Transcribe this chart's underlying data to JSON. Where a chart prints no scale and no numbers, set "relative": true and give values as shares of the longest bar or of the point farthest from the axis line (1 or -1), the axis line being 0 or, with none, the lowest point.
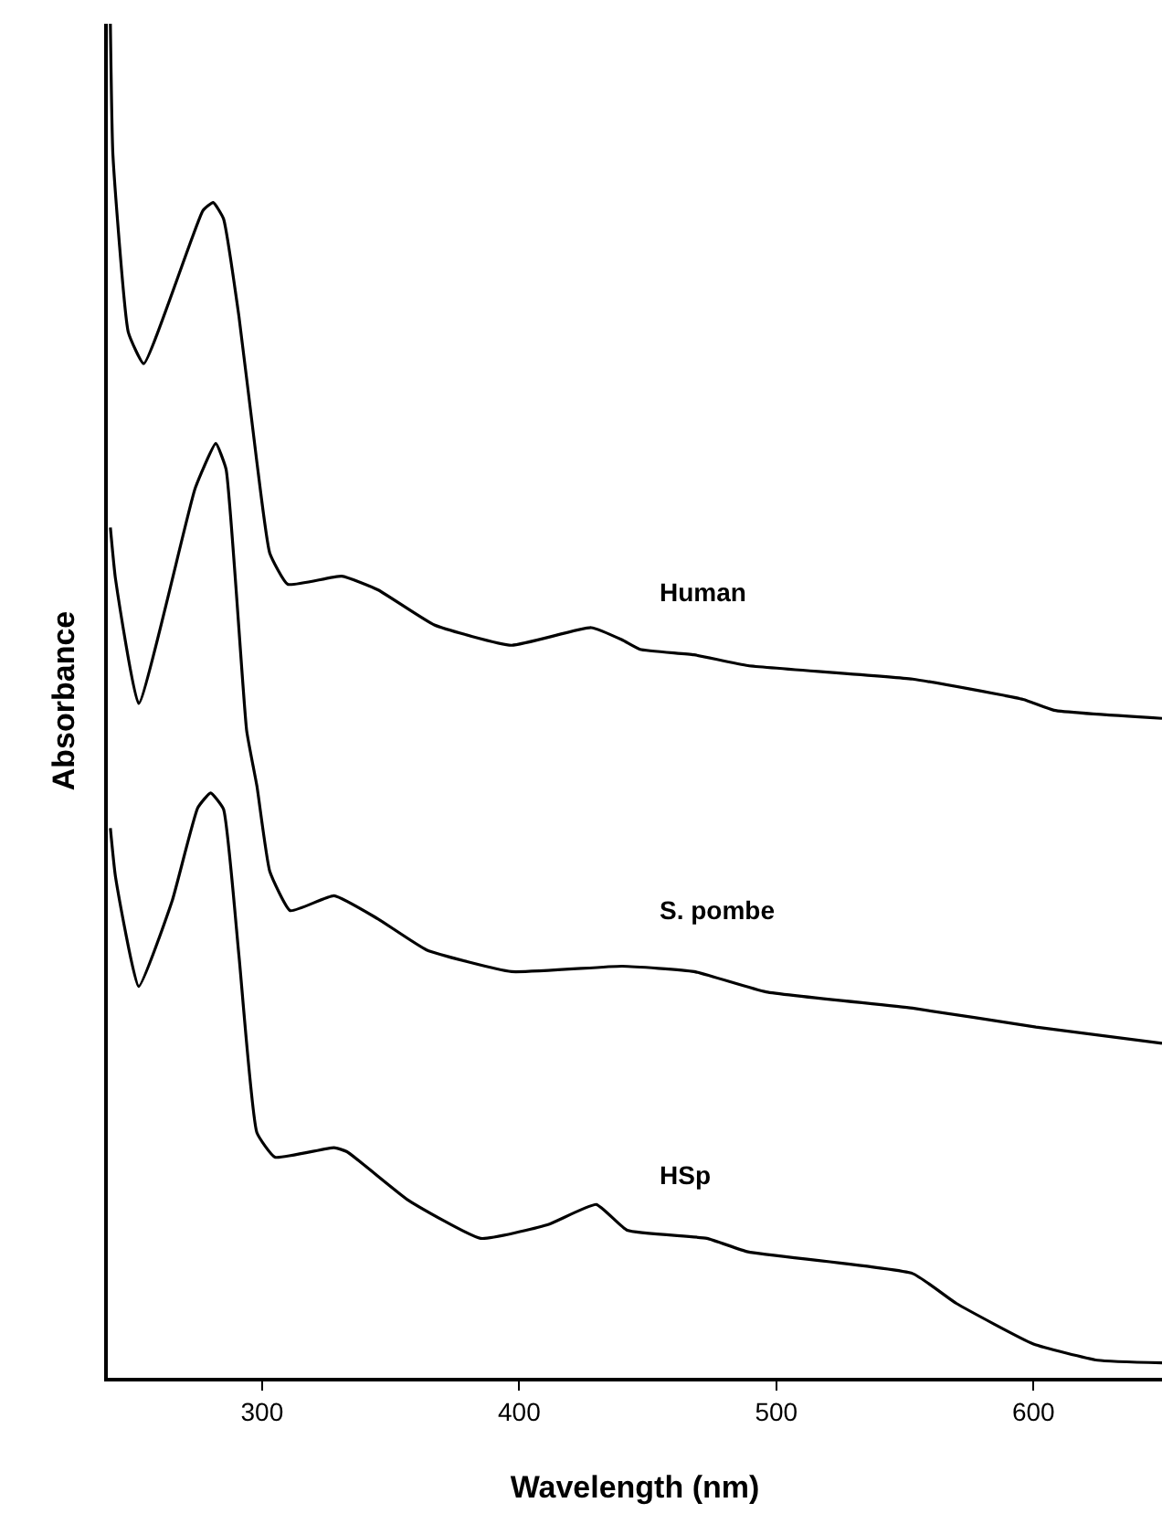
{
  "chart_data": {
    "type": "line",
    "xlabel": "Wavelength (nm)",
    "ylabel": "Absorbance",
    "relative": true,
    "xlim": [
      240,
      650
    ],
    "xticks": [
      300,
      400,
      500,
      600
    ],
    "legend": false,
    "marker": "none",
    "line_style": "solid",
    "series": [
      {
        "name": "Human",
        "color": "#000000",
        "x": [
          241,
          242,
          248,
          254,
          277,
          281,
          285,
          291,
          298,
          303,
          310,
          331,
          345,
          367,
          397,
          428,
          440,
          447,
          468,
          489,
          553,
          596,
          608,
          650
        ],
        "values": [
          1.0,
          0.903,
          0.772,
          0.749,
          0.862,
          0.868,
          0.856,
          0.784,
          0.676,
          0.609,
          0.586,
          0.592,
          0.582,
          0.556,
          0.541,
          0.554,
          0.545,
          0.538,
          0.534,
          0.526,
          0.516,
          0.501,
          0.493,
          0.487
        ]
      },
      {
        "name": "S. pombe",
        "color": "#000000",
        "x": [
          241,
          243,
          252,
          274,
          282,
          286,
          294,
          298,
          303,
          311,
          328,
          345,
          364,
          397,
          440,
          468,
          496,
          553,
          601,
          650
        ],
        "values": [
          0.628,
          0.59,
          0.498,
          0.657,
          0.69,
          0.671,
          0.478,
          0.437,
          0.374,
          0.345,
          0.356,
          0.339,
          0.316,
          0.3,
          0.304,
          0.3,
          0.285,
          0.273,
          0.259,
          0.247
        ]
      },
      {
        "name": "HSp",
        "color": "#000000",
        "x": [
          241,
          243,
          252,
          265,
          275,
          280,
          285,
          291,
          298,
          305,
          328,
          333,
          357,
          385,
          411,
          430,
          442,
          473,
          489,
          553,
          570,
          600,
          625,
          650
        ],
        "values": [
          0.406,
          0.37,
          0.289,
          0.352,
          0.421,
          0.432,
          0.42,
          0.312,
          0.181,
          0.163,
          0.17,
          0.167,
          0.131,
          0.103,
          0.113,
          0.128,
          0.109,
          0.103,
          0.093,
          0.077,
          0.055,
          0.025,
          0.013,
          0.011
        ]
      }
    ]
  }
}
